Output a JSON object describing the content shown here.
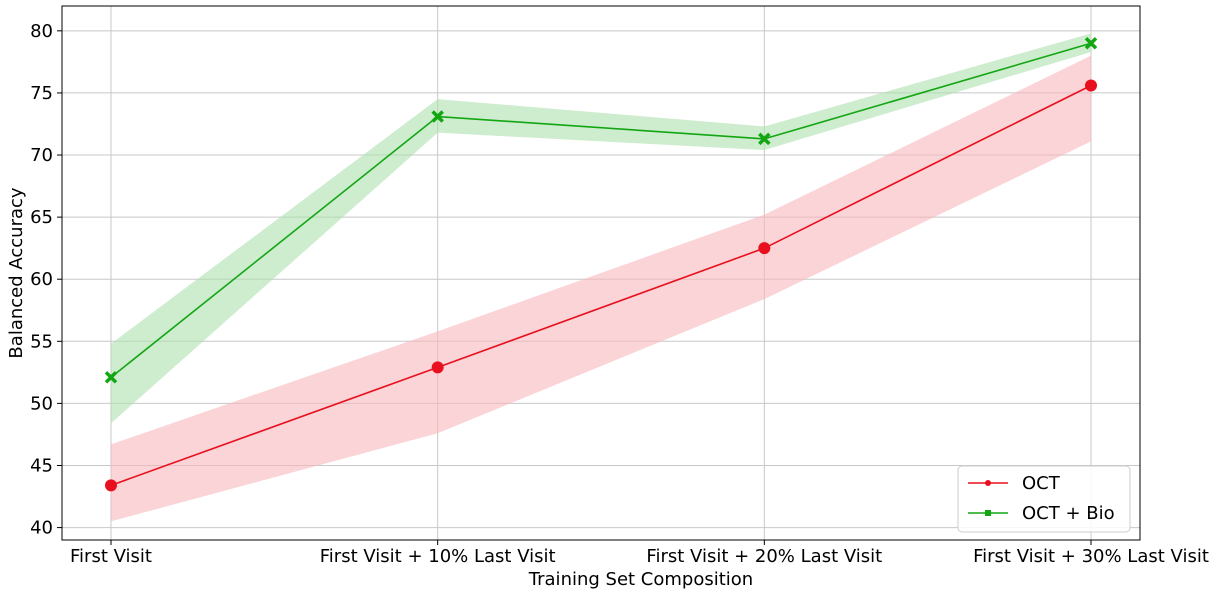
{
  "chart_data": {
    "type": "line",
    "title": "",
    "xlabel": "Training Set Composition",
    "ylabel": "Balanced Accuracy",
    "categories": [
      "First Visit",
      "First Visit + 10% Last Visit",
      "First Visit + 20% Last Visit",
      "First Visit + 30% Last Visit"
    ],
    "ylim": [
      39,
      82
    ],
    "yticks": [
      40,
      45,
      50,
      55,
      60,
      65,
      70,
      75,
      80
    ],
    "grid": true,
    "legend_position": "bottom-right",
    "series": [
      {
        "name": "OCT",
        "color": "#e8101e",
        "band_color": "#f9b7bd",
        "marker": "circle",
        "values": [
          43.4,
          52.9,
          62.5,
          75.6
        ],
        "lower": [
          40.5,
          47.6,
          58.4,
          71.1
        ],
        "upper": [
          46.7,
          55.8,
          65.2,
          78.0
        ]
      },
      {
        "name": "OCT + Bio",
        "color": "#13a613",
        "band_color": "#aee0ae",
        "marker": "x",
        "values": [
          52.1,
          73.1,
          71.3,
          79.0
        ],
        "lower": [
          48.4,
          71.8,
          70.4,
          78.3
        ],
        "upper": [
          54.8,
          74.5,
          72.3,
          79.8
        ]
      }
    ]
  }
}
